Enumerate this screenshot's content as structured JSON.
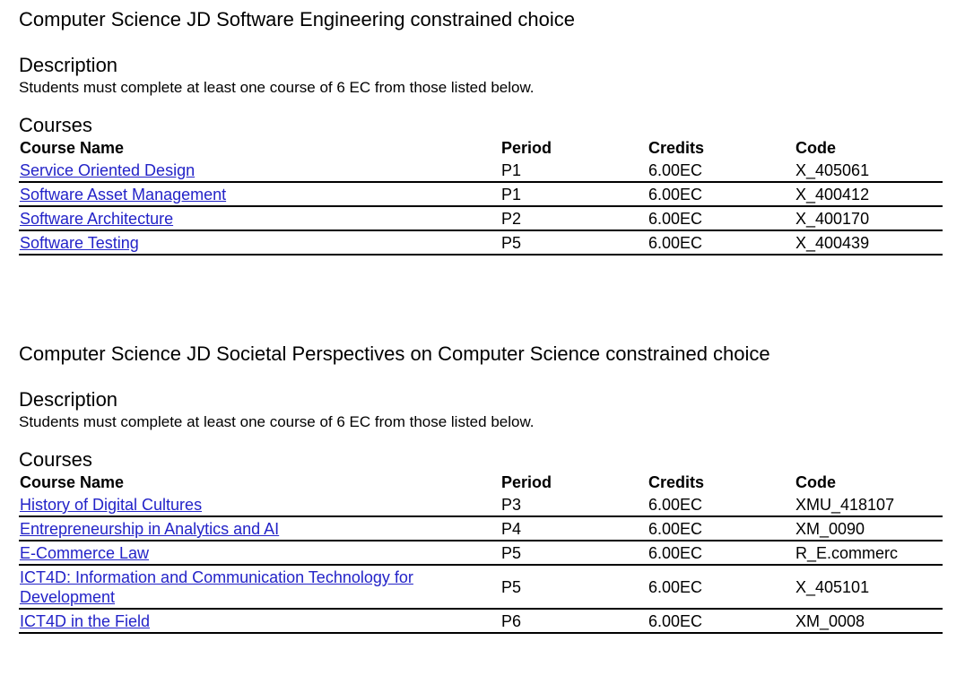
{
  "sections": [
    {
      "title": "Computer Science JD Software Engineering constrained choice",
      "description_heading": "Description",
      "description": "Students must complete at least one course of 6 EC from those listed below.",
      "courses_heading": "Courses",
      "columns": [
        "Course Name",
        "Period",
        "Credits",
        "Code"
      ],
      "rows": [
        {
          "name": "Service Oriented Design",
          "period": "P1",
          "credits": "6.00EC",
          "code": "X_405061"
        },
        {
          "name": "Software Asset Management",
          "period": "P1",
          "credits": "6.00EC",
          "code": "X_400412"
        },
        {
          "name": "Software Architecture",
          "period": "P2",
          "credits": "6.00EC",
          "code": "X_400170"
        },
        {
          "name": "Software Testing",
          "period": "P5",
          "credits": "6.00EC",
          "code": "X_400439"
        }
      ]
    },
    {
      "title": "Computer Science JD Societal Perspectives on Computer Science constrained choice",
      "description_heading": "Description",
      "description": "Students must complete at least one course of 6 EC from those listed below.",
      "courses_heading": "Courses",
      "columns": [
        "Course Name",
        "Period",
        "Credits",
        "Code"
      ],
      "rows": [
        {
          "name": "History of Digital Cultures",
          "period": "P3",
          "credits": "6.00EC",
          "code": "XMU_418107"
        },
        {
          "name": "Entrepreneurship in Analytics and AI",
          "period": "P4",
          "credits": "6.00EC",
          "code": "XM_0090"
        },
        {
          "name": "E-Commerce Law",
          "period": "P5",
          "credits": "6.00EC",
          "code": "R_E.commerc"
        },
        {
          "name": "ICT4D: Information and Communication Technology for Development",
          "period": "P5",
          "credits": "6.00EC",
          "code": "X_405101"
        },
        {
          "name": "ICT4D in the Field",
          "period": "P6",
          "credits": "6.00EC",
          "code": "XM_0008"
        }
      ]
    }
  ]
}
